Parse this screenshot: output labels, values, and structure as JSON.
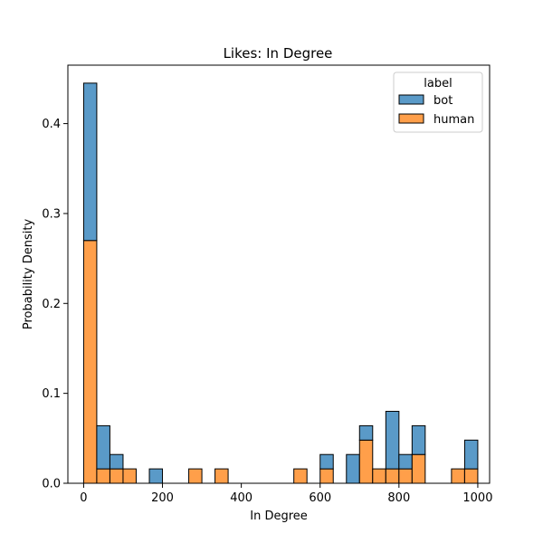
{
  "chart_data": {
    "type": "bar",
    "subtype": "stacked-histogram",
    "title": "Likes: In Degree",
    "xlabel": "In Degree",
    "ylabel": "Probability Density",
    "xlim": [
      -40,
      1030
    ],
    "ylim": [
      0,
      0.465
    ],
    "xticks": [
      0,
      200,
      400,
      600,
      800,
      1000
    ],
    "yticks": [
      0.0,
      0.1,
      0.2,
      0.3,
      0.4
    ],
    "ytick_labels": [
      "0.0",
      "0.1",
      "0.2",
      "0.3",
      "0.4"
    ],
    "bin_width": 33.3,
    "bin_starts": [
      0,
      33.3,
      66.7,
      100,
      166.7,
      266.7,
      333.3,
      533.3,
      600,
      666.7,
      700,
      733.3,
      766.7,
      800,
      833.3,
      933.3,
      966.7
    ],
    "legend": {
      "title": "label",
      "position": "top-right"
    },
    "series": [
      {
        "name": "human",
        "color": "#ff9f4a",
        "values": [
          0.27,
          0.016,
          0.016,
          0.016,
          0.0,
          0.016,
          0.016,
          0.016,
          0.016,
          0.0,
          0.048,
          0.016,
          0.016,
          0.016,
          0.032,
          0.016,
          0.016
        ]
      },
      {
        "name": "bot",
        "color": "#5a9ac8",
        "values": [
          0.175,
          0.048,
          0.016,
          0.0,
          0.016,
          0.0,
          0.0,
          0.0,
          0.016,
          0.032,
          0.016,
          0.0,
          0.064,
          0.016,
          0.032,
          0.0,
          0.032
        ]
      }
    ],
    "legend_order": [
      "bot",
      "human"
    ],
    "grid": false
  }
}
